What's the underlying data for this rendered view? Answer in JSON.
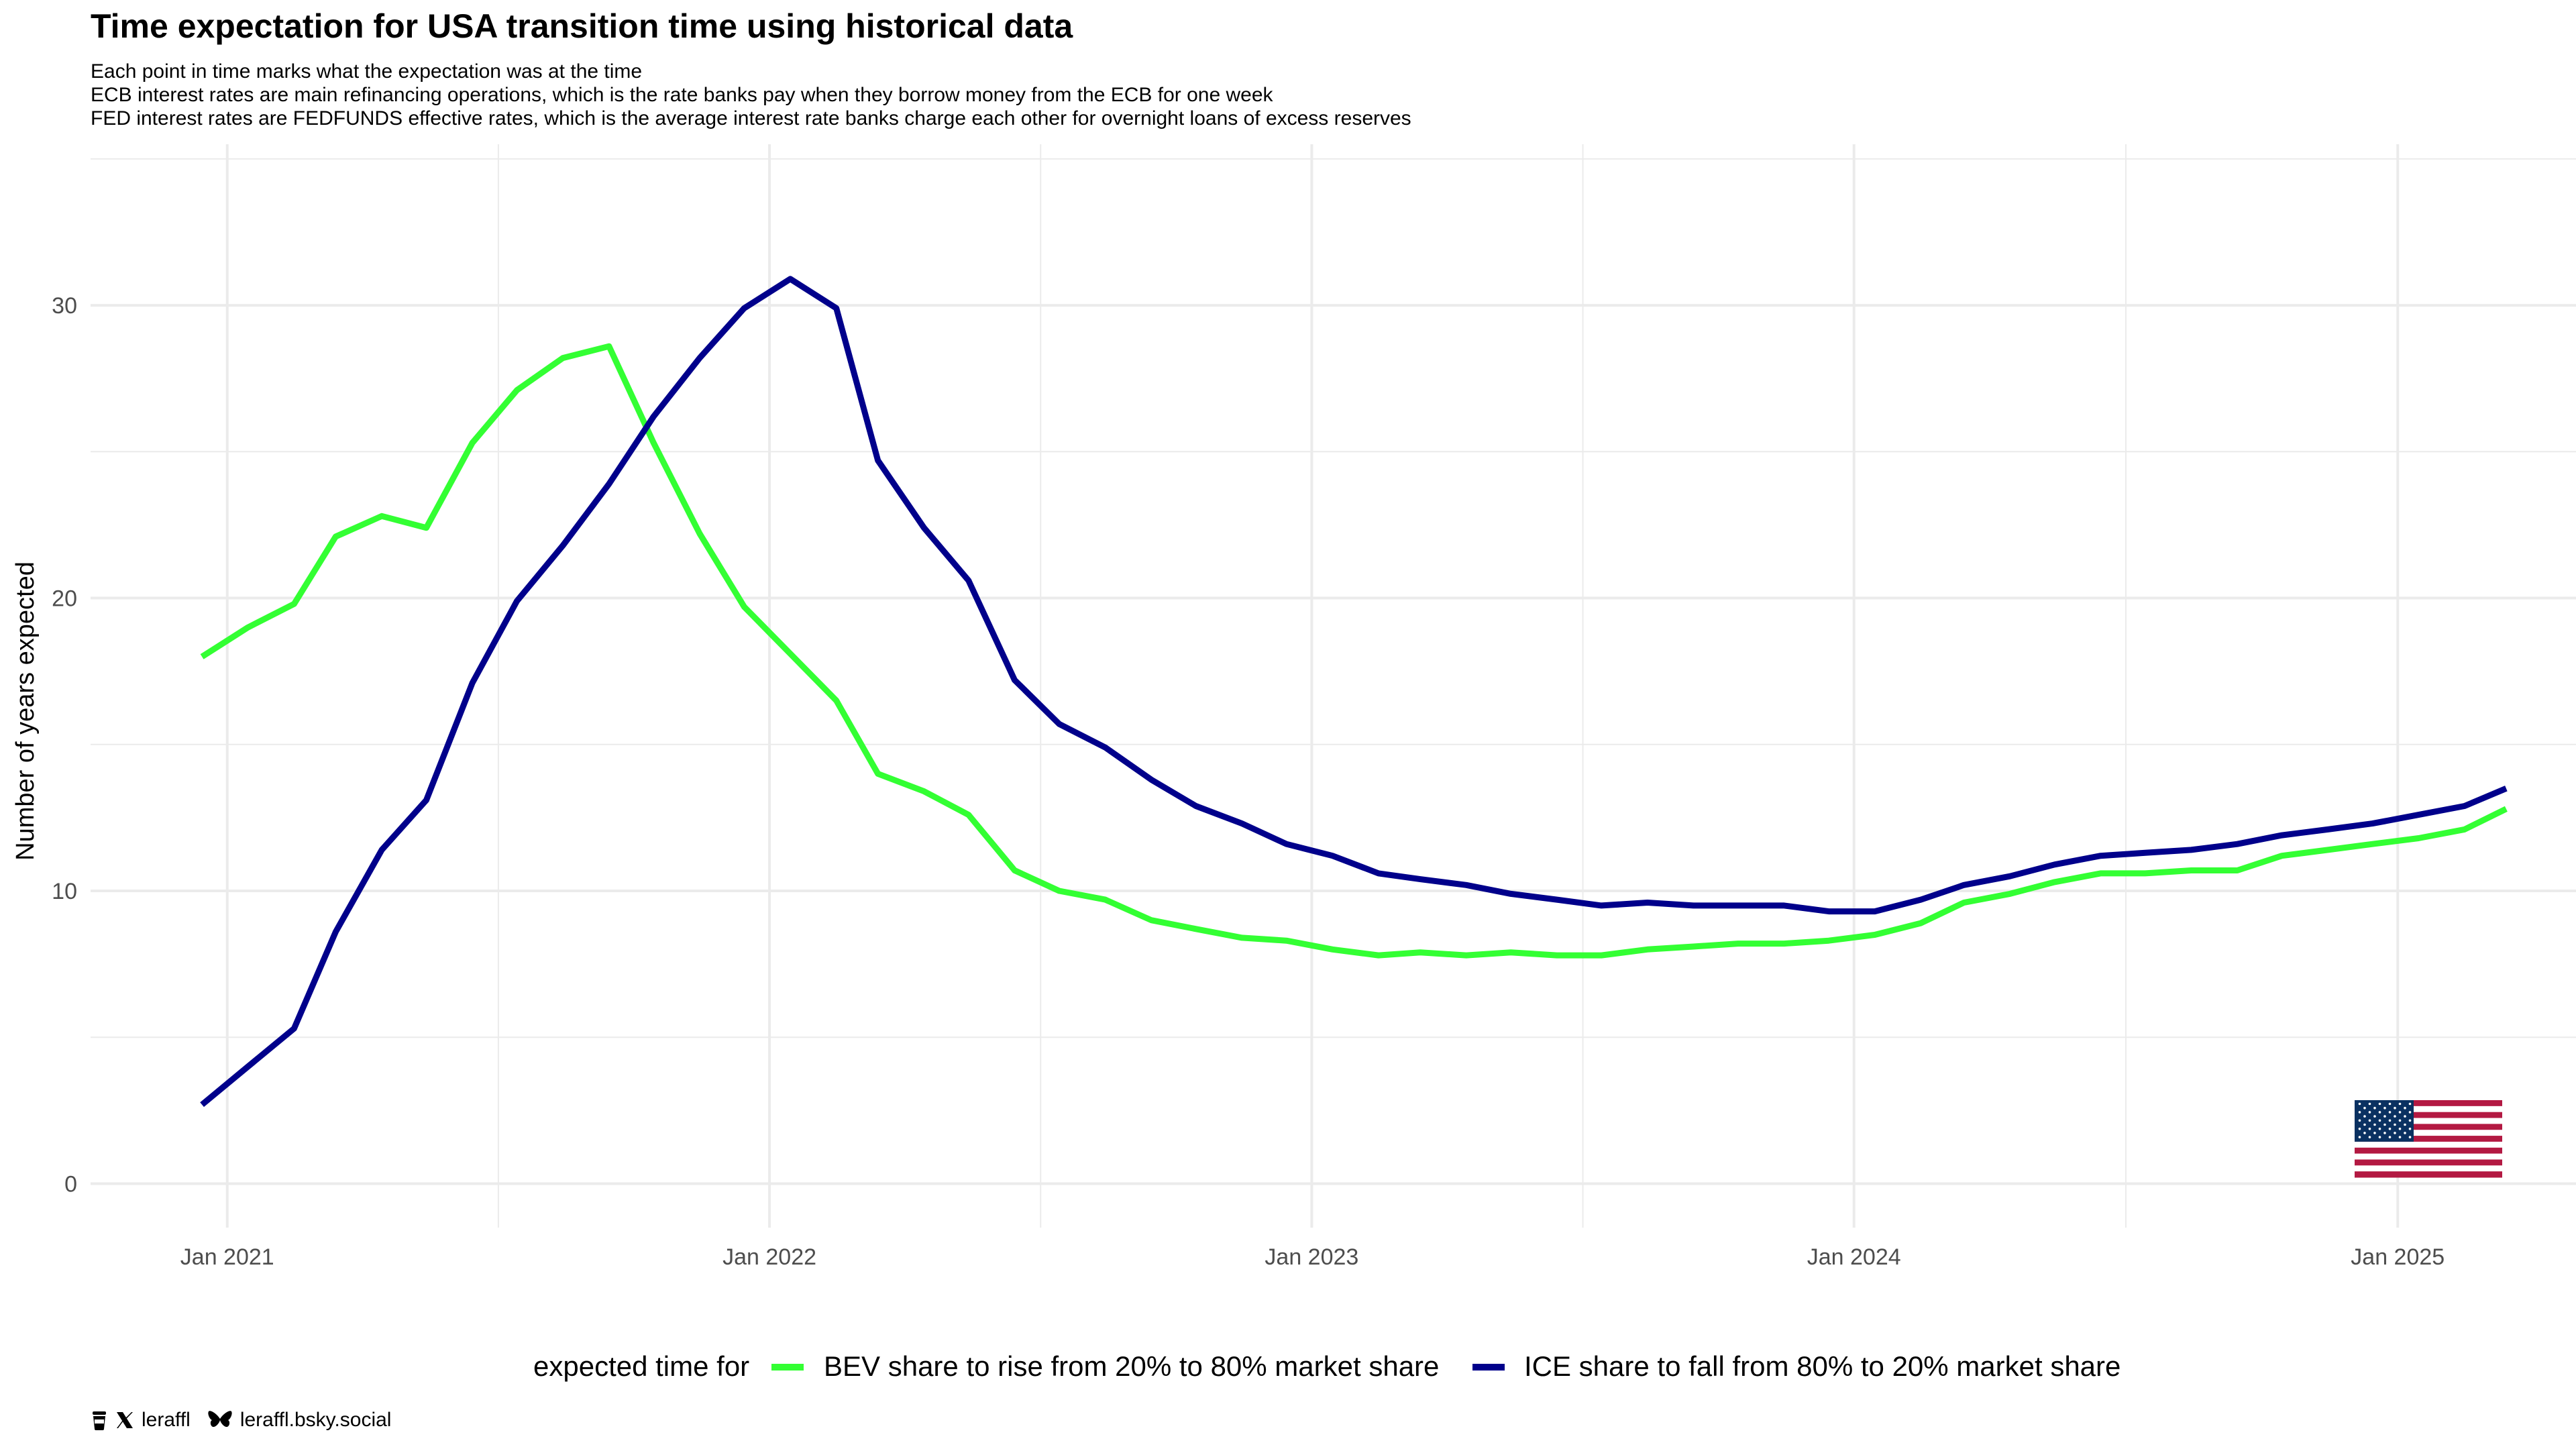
{
  "title": "Time expectation for USA transition time using historical data",
  "subtitles": [
    "Each point in time marks what the expectation was at the time",
    "ECB interest rates are main refinancing operations, which is the rate banks pay when they borrow money from the ECB for one week",
    "FED interest rates are FEDFUNDS effective rates, which is the average interest rate banks charge each other for overnight loans of excess reserves"
  ],
  "footer": {
    "handle": "leraffl",
    "bluesky": "leraffl.bsky.social",
    "icons": [
      "coffee-icon",
      "x-logo-icon",
      "butterfly-icon"
    ]
  },
  "flag": "usa-flag",
  "chart_data": {
    "type": "line",
    "title": "Time expectation for USA transition time using historical data",
    "ylabel": "Number of years expected",
    "xlabel": "",
    "ylim": [
      -1.5,
      35.5
    ],
    "yticks": [
      0,
      10,
      20,
      30
    ],
    "xlim": [
      "2020-10-01",
      "2025-05-01"
    ],
    "xticks": [
      {
        "date": "2021-01-01",
        "label": "Jan 2021"
      },
      {
        "date": "2022-01-01",
        "label": "Jan 2022"
      },
      {
        "date": "2023-01-01",
        "label": "Jan 2023"
      },
      {
        "date": "2024-01-01",
        "label": "Jan 2024"
      },
      {
        "date": "2025-01-01",
        "label": "Jan 2025"
      }
    ],
    "grid": true,
    "legend": {
      "position": "bottom",
      "title": "expected time for"
    },
    "x": [
      "2020-12",
      "2021-01",
      "2021-02",
      "2021-03",
      "2021-04",
      "2021-05",
      "2021-06",
      "2021-07",
      "2021-08",
      "2021-09",
      "2021-10",
      "2021-11",
      "2021-12",
      "2022-01",
      "2022-02",
      "2022-03",
      "2022-04",
      "2022-05",
      "2022-06",
      "2022-07",
      "2022-08",
      "2022-09",
      "2022-10",
      "2022-11",
      "2022-12",
      "2023-01",
      "2023-02",
      "2023-03",
      "2023-04",
      "2023-05",
      "2023-06",
      "2023-07",
      "2023-08",
      "2023-09",
      "2023-10",
      "2023-11",
      "2023-12",
      "2024-01",
      "2024-02",
      "2024-03",
      "2024-04",
      "2024-05",
      "2024-06",
      "2024-07",
      "2024-08",
      "2024-09",
      "2024-10",
      "2024-11",
      "2024-12",
      "2025-01",
      "2025-02",
      "2025-03"
    ],
    "series": [
      {
        "name": "BEV share to rise from 20% to 80% market share",
        "color": "#33ff33",
        "values": [
          18.0,
          19.0,
          19.8,
          22.1,
          22.8,
          22.4,
          25.3,
          27.1,
          28.2,
          28.6,
          25.3,
          22.2,
          19.7,
          18.1,
          16.5,
          14.0,
          13.4,
          12.6,
          10.7,
          10.0,
          9.7,
          9.0,
          8.7,
          8.4,
          8.3,
          8.0,
          7.8,
          7.9,
          7.8,
          7.9,
          7.8,
          7.8,
          8.0,
          8.1,
          8.2,
          8.2,
          8.3,
          8.5,
          8.9,
          9.6,
          9.9,
          10.3,
          10.6,
          10.6,
          10.7,
          10.7,
          11.2,
          11.4,
          11.6,
          11.8,
          12.1,
          12.8
        ]
      },
      {
        "name": "ICE share to fall from 80% to 20% market share",
        "color": "#00008b",
        "values": [
          2.7,
          4.0,
          5.3,
          8.6,
          11.4,
          13.1,
          17.1,
          19.9,
          21.8,
          23.9,
          26.2,
          28.2,
          29.9,
          30.9,
          29.9,
          24.7,
          22.4,
          20.6,
          17.2,
          15.7,
          14.9,
          13.8,
          12.9,
          12.3,
          11.6,
          11.2,
          10.6,
          10.4,
          10.2,
          9.9,
          9.7,
          9.5,
          9.6,
          9.5,
          9.5,
          9.5,
          9.3,
          9.3,
          9.7,
          10.2,
          10.5,
          10.9,
          11.2,
          11.3,
          11.4,
          11.6,
          11.9,
          12.1,
          12.3,
          12.6,
          12.9,
          13.5
        ]
      }
    ]
  }
}
